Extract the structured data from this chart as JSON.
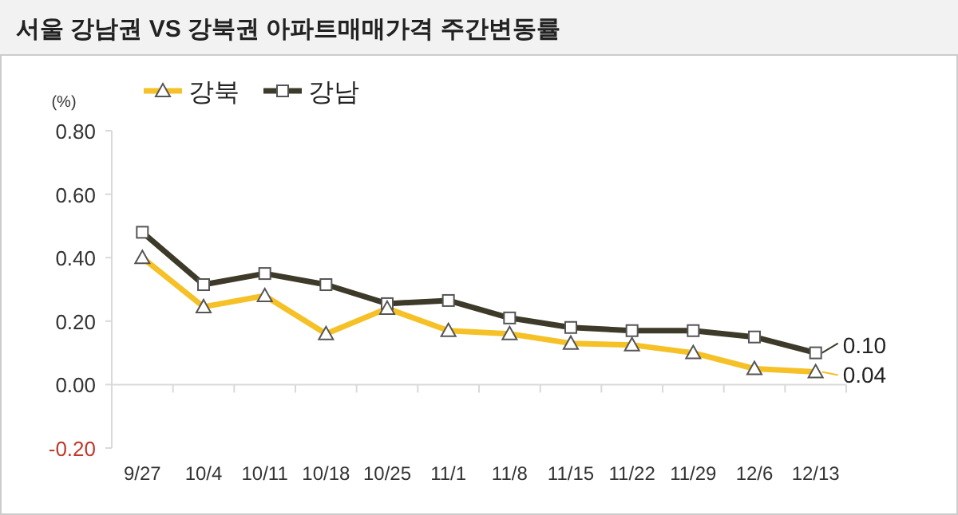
{
  "chart_data": {
    "type": "line",
    "title": "서울 강남권 VS 강북권 아파트매매가격 주간변동률",
    "ylabel": "(%)",
    "categories": [
      "9/27",
      "10/4",
      "10/11",
      "10/18",
      "10/25",
      "11/1",
      "11/8",
      "11/15",
      "11/22",
      "11/29",
      "12/6",
      "12/13"
    ],
    "series": [
      {
        "name": "강북",
        "color": "#f5c127",
        "marker": "triangle",
        "values": [
          0.4,
          0.245,
          0.28,
          0.16,
          0.24,
          0.17,
          0.16,
          0.13,
          0.125,
          0.1,
          0.05,
          0.04
        ],
        "value_labels": [
          null,
          null,
          null,
          null,
          null,
          null,
          null,
          null,
          null,
          null,
          null,
          "0.04"
        ]
      },
      {
        "name": "강남",
        "color": "#3d3a2a",
        "marker": "square",
        "values": [
          0.48,
          0.315,
          0.35,
          0.315,
          0.255,
          0.265,
          0.21,
          0.18,
          0.17,
          0.17,
          0.15,
          0.1
        ],
        "value_labels": [
          null,
          null,
          null,
          null,
          null,
          null,
          null,
          null,
          null,
          null,
          null,
          "0.10"
        ]
      }
    ],
    "ylim": [
      -0.2,
      0.8
    ],
    "yticks": [
      {
        "value": -0.2,
        "label": "-0.20"
      },
      {
        "value": 0,
        "label": "0.00"
      },
      {
        "value": 0.2,
        "label": "0.20"
      },
      {
        "value": 0.4,
        "label": "0.40"
      },
      {
        "value": 0.6,
        "label": "0.60"
      },
      {
        "value": 0.8,
        "label": "0.80"
      }
    ],
    "legend": "top left"
  }
}
